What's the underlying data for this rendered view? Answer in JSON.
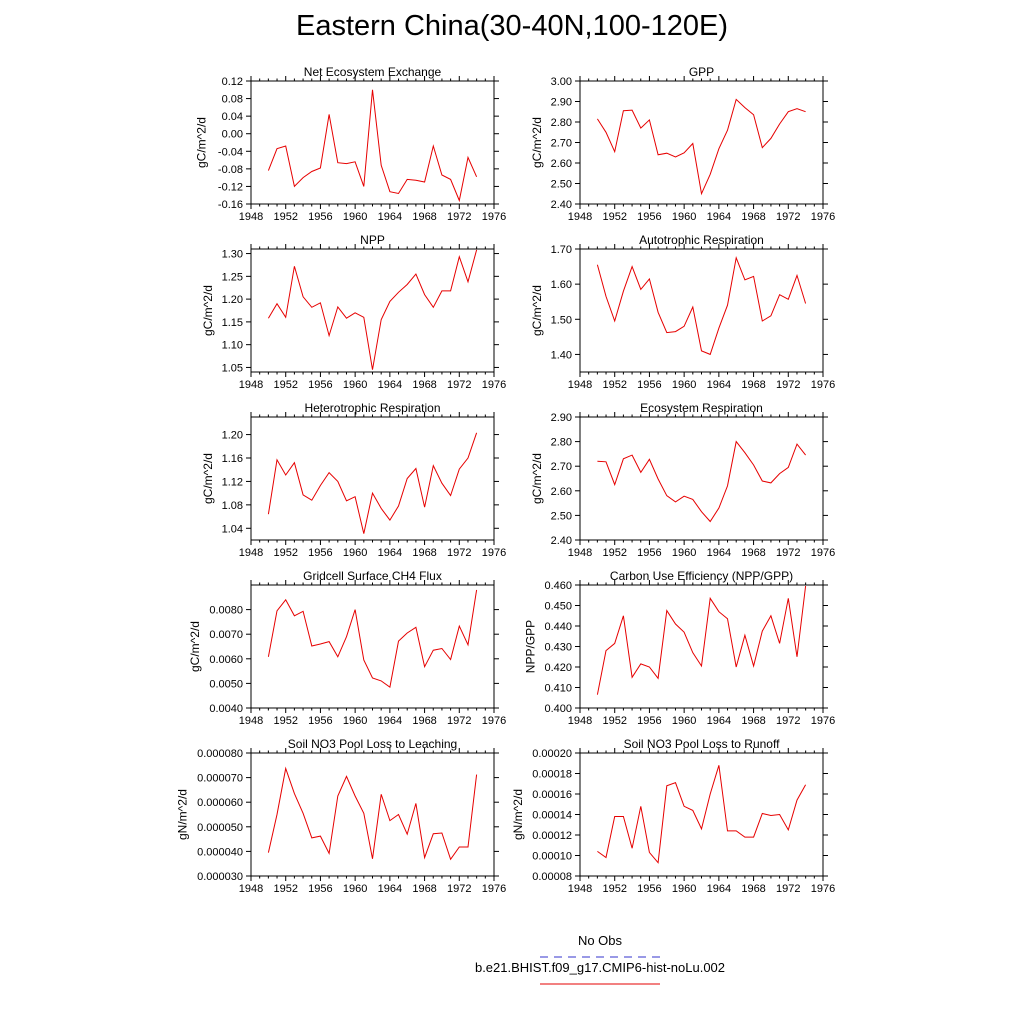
{
  "figure": {
    "title": "Eastern China(30-40N,100-120E)"
  },
  "legend": {
    "entries": [
      {
        "label": "No Obs",
        "color": "#3333cc",
        "dash": true
      },
      {
        "label": "b.e21.BHIST.f09_g17.CMIP6-hist-noLu.002",
        "color": "#e60000",
        "dash": false
      }
    ]
  },
  "chart_data": [
    {
      "type": "line",
      "title": "Net Ecosystem Exchange",
      "ylabel": "gC/m^2/d",
      "xlim": [
        1948,
        1976
      ],
      "ylim": [
        -0.16,
        0.12
      ],
      "xticks": [
        "1948",
        "1952",
        "1956",
        "1960",
        "1964",
        "1968",
        "1972",
        "1976"
      ],
      "yticks": [
        "-0.16",
        "-0.12",
        "-0.08",
        "-0.04",
        "0.00",
        "0.04",
        "0.08",
        "0.12"
      ],
      "x": [
        1950,
        1951,
        1952,
        1953,
        1954,
        1955,
        1956,
        1957,
        1958,
        1959,
        1960,
        1961,
        1962,
        1963,
        1964,
        1965,
        1966,
        1967,
        1968,
        1969,
        1970,
        1971,
        1972,
        1973,
        1974
      ],
      "series": [
        {
          "color": "#e60000",
          "values": [
            -0.084,
            -0.034,
            -0.028,
            -0.12,
            -0.1,
            -0.086,
            -0.078,
            0.044,
            -0.066,
            -0.068,
            -0.064,
            -0.12,
            0.1,
            -0.072,
            -0.132,
            -0.136,
            -0.104,
            -0.106,
            -0.11,
            -0.028,
            -0.094,
            -0.104,
            -0.152,
            -0.054,
            -0.098
          ]
        }
      ]
    },
    {
      "type": "line",
      "title": "GPP",
      "ylabel": "gC/m^2/d",
      "xlim": [
        1948,
        1976
      ],
      "ylim": [
        2.4,
        3.0
      ],
      "xticks": [
        "1948",
        "1952",
        "1956",
        "1960",
        "1964",
        "1968",
        "1972",
        "1976"
      ],
      "yticks": [
        "2.40",
        "2.50",
        "2.60",
        "2.70",
        "2.80",
        "2.90",
        "3.00"
      ],
      "x": [
        1950,
        1951,
        1952,
        1953,
        1954,
        1955,
        1956,
        1957,
        1958,
        1959,
        1960,
        1961,
        1962,
        1963,
        1964,
        1965,
        1966,
        1967,
        1968,
        1969,
        1970,
        1971,
        1972,
        1973,
        1974
      ],
      "series": [
        {
          "color": "#e60000",
          "values": [
            2.815,
            2.75,
            2.655,
            2.855,
            2.858,
            2.77,
            2.81,
            2.64,
            2.648,
            2.63,
            2.65,
            2.695,
            2.45,
            2.545,
            2.67,
            2.76,
            2.91,
            2.87,
            2.835,
            2.675,
            2.72,
            2.79,
            2.85,
            2.865,
            2.85
          ]
        }
      ]
    },
    {
      "type": "line",
      "title": "NPP",
      "ylabel": "gC/m^2/d",
      "xlim": [
        1948,
        1976
      ],
      "ylim": [
        1.04,
        1.31
      ],
      "xticks": [
        "1948",
        "1952",
        "1956",
        "1960",
        "1964",
        "1968",
        "1972",
        "1976"
      ],
      "yticks": [
        "1.05",
        "1.10",
        "1.15",
        "1.20",
        "1.25",
        "1.30"
      ],
      "x": [
        1950,
        1951,
        1952,
        1953,
        1954,
        1955,
        1956,
        1957,
        1958,
        1959,
        1960,
        1961,
        1962,
        1963,
        1964,
        1965,
        1966,
        1967,
        1968,
        1969,
        1970,
        1971,
        1972,
        1973,
        1974
      ],
      "series": [
        {
          "color": "#e60000",
          "values": [
            1.158,
            1.19,
            1.16,
            1.272,
            1.205,
            1.182,
            1.192,
            1.12,
            1.183,
            1.158,
            1.17,
            1.16,
            1.045,
            1.155,
            1.195,
            1.215,
            1.232,
            1.255,
            1.21,
            1.182,
            1.218,
            1.218,
            1.293,
            1.238,
            1.308
          ]
        }
      ]
    },
    {
      "type": "line",
      "title": "Autotrophic Respiration",
      "ylabel": "gC/m^2/d",
      "xlim": [
        1948,
        1976
      ],
      "ylim": [
        1.35,
        1.7
      ],
      "xticks": [
        "1948",
        "1952",
        "1956",
        "1960",
        "1964",
        "1968",
        "1972",
        "1976"
      ],
      "yticks": [
        "1.40",
        "1.50",
        "1.60",
        "1.70"
      ],
      "x": [
        1950,
        1951,
        1952,
        1953,
        1954,
        1955,
        1956,
        1957,
        1958,
        1959,
        1960,
        1961,
        1962,
        1963,
        1964,
        1965,
        1966,
        1967,
        1968,
        1969,
        1970,
        1971,
        1972,
        1973,
        1974
      ],
      "series": [
        {
          "color": "#e60000",
          "values": [
            1.655,
            1.565,
            1.495,
            1.58,
            1.65,
            1.585,
            1.615,
            1.52,
            1.462,
            1.465,
            1.48,
            1.535,
            1.41,
            1.4,
            1.475,
            1.54,
            1.675,
            1.612,
            1.622,
            1.495,
            1.51,
            1.57,
            1.557,
            1.625,
            1.545
          ]
        }
      ]
    },
    {
      "type": "line",
      "title": "Heterotrophic Respiration",
      "ylabel": "gC/m^2/d",
      "xlim": [
        1948,
        1976
      ],
      "ylim": [
        1.02,
        1.23
      ],
      "xticks": [
        "1948",
        "1952",
        "1956",
        "1960",
        "1964",
        "1968",
        "1972",
        "1976"
      ],
      "yticks": [
        "1.04",
        "1.08",
        "1.12",
        "1.16",
        "1.20"
      ],
      "x": [
        1950,
        1951,
        1952,
        1953,
        1954,
        1955,
        1956,
        1957,
        1958,
        1959,
        1960,
        1961,
        1962,
        1963,
        1964,
        1965,
        1966,
        1967,
        1968,
        1969,
        1970,
        1971,
        1972,
        1973,
        1974
      ],
      "series": [
        {
          "color": "#e60000",
          "values": [
            1.064,
            1.157,
            1.131,
            1.152,
            1.097,
            1.088,
            1.113,
            1.135,
            1.12,
            1.087,
            1.094,
            1.031,
            1.1,
            1.074,
            1.054,
            1.078,
            1.125,
            1.142,
            1.076,
            1.147,
            1.117,
            1.096,
            1.141,
            1.16,
            1.203
          ]
        }
      ]
    },
    {
      "type": "line",
      "title": "Ecosystem Respiration",
      "ylabel": "gC/m^2/d",
      "xlim": [
        1948,
        1976
      ],
      "ylim": [
        2.4,
        2.9
      ],
      "xticks": [
        "1948",
        "1952",
        "1956",
        "1960",
        "1964",
        "1968",
        "1972",
        "1976"
      ],
      "yticks": [
        "2.40",
        "2.50",
        "2.60",
        "2.70",
        "2.80",
        "2.90"
      ],
      "x": [
        1950,
        1951,
        1952,
        1953,
        1954,
        1955,
        1956,
        1957,
        1958,
        1959,
        1960,
        1961,
        1962,
        1963,
        1964,
        1965,
        1966,
        1967,
        1968,
        1969,
        1970,
        1971,
        1972,
        1973,
        1974
      ],
      "series": [
        {
          "color": "#e60000",
          "values": [
            2.72,
            2.718,
            2.625,
            2.73,
            2.745,
            2.675,
            2.728,
            2.648,
            2.58,
            2.555,
            2.578,
            2.565,
            2.515,
            2.475,
            2.53,
            2.62,
            2.8,
            2.755,
            2.705,
            2.64,
            2.632,
            2.67,
            2.695,
            2.79,
            2.745
          ]
        }
      ]
    },
    {
      "type": "line",
      "title": "Gridcell Surface CH4 Flux",
      "ylabel": "gC/m^2/d",
      "xlim": [
        1948,
        1976
      ],
      "ylim": [
        0.004,
        0.009
      ],
      "xticks": [
        "1948",
        "1952",
        "1956",
        "1960",
        "1964",
        "1968",
        "1972",
        "1976"
      ],
      "yticks": [
        "0.0040",
        "0.0050",
        "0.0060",
        "0.0070",
        "0.0080"
      ],
      "x": [
        1950,
        1951,
        1952,
        1953,
        1954,
        1955,
        1956,
        1957,
        1958,
        1959,
        1960,
        1961,
        1962,
        1963,
        1964,
        1965,
        1966,
        1967,
        1968,
        1969,
        1970,
        1971,
        1972,
        1973,
        1974
      ],
      "series": [
        {
          "color": "#e60000",
          "values": [
            0.00608,
            0.00795,
            0.0084,
            0.00775,
            0.00793,
            0.00652,
            0.0066,
            0.0067,
            0.00608,
            0.0069,
            0.008,
            0.00595,
            0.00522,
            0.0051,
            0.00485,
            0.00672,
            0.00705,
            0.00728,
            0.00568,
            0.00635,
            0.00642,
            0.00597,
            0.00733,
            0.00657,
            0.0088
          ]
        }
      ]
    },
    {
      "type": "line",
      "title": "Carbon Use Efficiency (NPP/GPP)",
      "ylabel": "NPP/GPP",
      "xlim": [
        1948,
        1976
      ],
      "ylim": [
        0.4,
        0.46
      ],
      "xticks": [
        "1948",
        "1952",
        "1956",
        "1960",
        "1964",
        "1968",
        "1972",
        "1976"
      ],
      "yticks": [
        "0.400",
        "0.410",
        "0.420",
        "0.430",
        "0.440",
        "0.450",
        "0.460"
      ],
      "x": [
        1950,
        1951,
        1952,
        1953,
        1954,
        1955,
        1956,
        1957,
        1958,
        1959,
        1960,
        1961,
        1962,
        1963,
        1964,
        1965,
        1966,
        1967,
        1968,
        1969,
        1970,
        1971,
        1972,
        1973,
        1974
      ],
      "series": [
        {
          "color": "#e60000",
          "values": [
            0.4065,
            0.428,
            0.4315,
            0.445,
            0.415,
            0.4215,
            0.42,
            0.4145,
            0.4475,
            0.441,
            0.437,
            0.427,
            0.4205,
            0.4535,
            0.447,
            0.4435,
            0.42,
            0.4355,
            0.4205,
            0.4375,
            0.445,
            0.4315,
            0.4535,
            0.425,
            0.4595
          ]
        }
      ]
    },
    {
      "type": "line",
      "title": "Soil NO3 Pool Loss to Leaching",
      "ylabel": "gN/m^2/d",
      "xlim": [
        1948,
        1976
      ],
      "ylim": [
        3e-05,
        8e-05
      ],
      "xticks": [
        "1948",
        "1952",
        "1956",
        "1960",
        "1964",
        "1968",
        "1972",
        "1976"
      ],
      "yticks": [
        "0.000030",
        "0.000040",
        "0.000050",
        "0.000060",
        "0.000070",
        "0.000080"
      ],
      "x": [
        1950,
        1951,
        1952,
        1953,
        1954,
        1955,
        1956,
        1957,
        1958,
        1959,
        1960,
        1961,
        1962,
        1963,
        1964,
        1965,
        1966,
        1967,
        1968,
        1969,
        1970,
        1971,
        1972,
        1973,
        1974
      ],
      "series": [
        {
          "color": "#e60000",
          "values": [
            3.95e-05,
            5.5e-05,
            7.37e-05,
            6.35e-05,
            5.55e-05,
            4.55e-05,
            4.62e-05,
            3.92e-05,
            6.25e-05,
            7.05e-05,
            6.25e-05,
            5.55e-05,
            3.7e-05,
            6.32e-05,
            5.25e-05,
            5.5e-05,
            4.7e-05,
            5.95e-05,
            3.75e-05,
            4.72e-05,
            4.75e-05,
            3.68e-05,
            4.18e-05,
            4.18e-05,
            7.12e-05
          ]
        }
      ]
    },
    {
      "type": "line",
      "title": "Soil NO3 Pool Loss to Runoff",
      "ylabel": "gN/m^2/d",
      "xlim": [
        1948,
        1976
      ],
      "ylim": [
        8e-05,
        0.0002
      ],
      "xticks": [
        "1948",
        "1952",
        "1956",
        "1960",
        "1964",
        "1968",
        "1972",
        "1976"
      ],
      "yticks": [
        "0.00008",
        "0.00010",
        "0.00012",
        "0.00014",
        "0.00016",
        "0.00018",
        "0.00020"
      ],
      "x": [
        1950,
        1951,
        1952,
        1953,
        1954,
        1955,
        1956,
        1957,
        1958,
        1959,
        1960,
        1961,
        1962,
        1963,
        1964,
        1965,
        1966,
        1967,
        1968,
        1969,
        1970,
        1971,
        1972,
        1973,
        1974
      ],
      "series": [
        {
          "color": "#e60000",
          "values": [
            0.000104,
            9.8e-05,
            0.000138,
            0.000138,
            0.000107,
            0.000148,
            0.000103,
            9.3e-05,
            0.000168,
            0.000171,
            0.000148,
            0.000144,
            0.000126,
            0.00016,
            0.000188,
            0.000124,
            0.000124,
            0.000118,
            0.000118,
            0.000141,
            0.000139,
            0.00014,
            0.000125,
            0.000154,
            0.000169
          ]
        }
      ]
    }
  ]
}
